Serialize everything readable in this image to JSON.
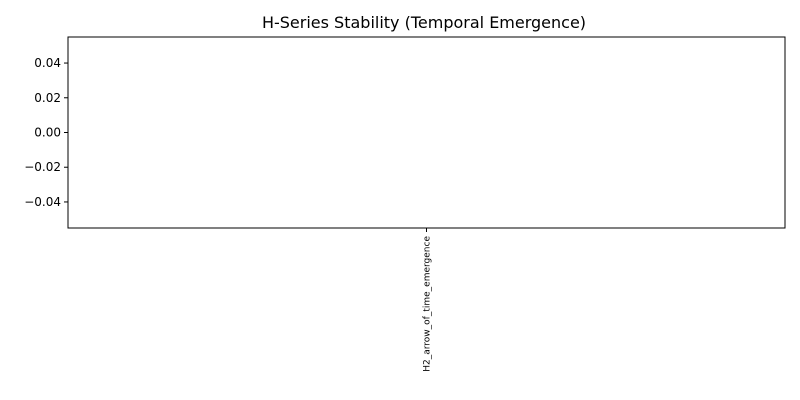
{
  "chart_data": {
    "type": "bar",
    "title": "H-Series Stability (Temporal Emergence)",
    "categories": [
      "H2_arrow_of_time_emergence"
    ],
    "values": [
      0
    ],
    "xlabel": "",
    "ylabel": "",
    "ylim": [
      -0.055,
      0.055
    ],
    "yticks": [
      0.04,
      0.02,
      0.0,
      -0.02,
      -0.04
    ],
    "ytick_labels": [
      "0.04",
      "0.02",
      "0.00",
      "−0.02",
      "−0.04"
    ],
    "grid": false,
    "legend": "none",
    "bar_color": "#1f77b4"
  }
}
